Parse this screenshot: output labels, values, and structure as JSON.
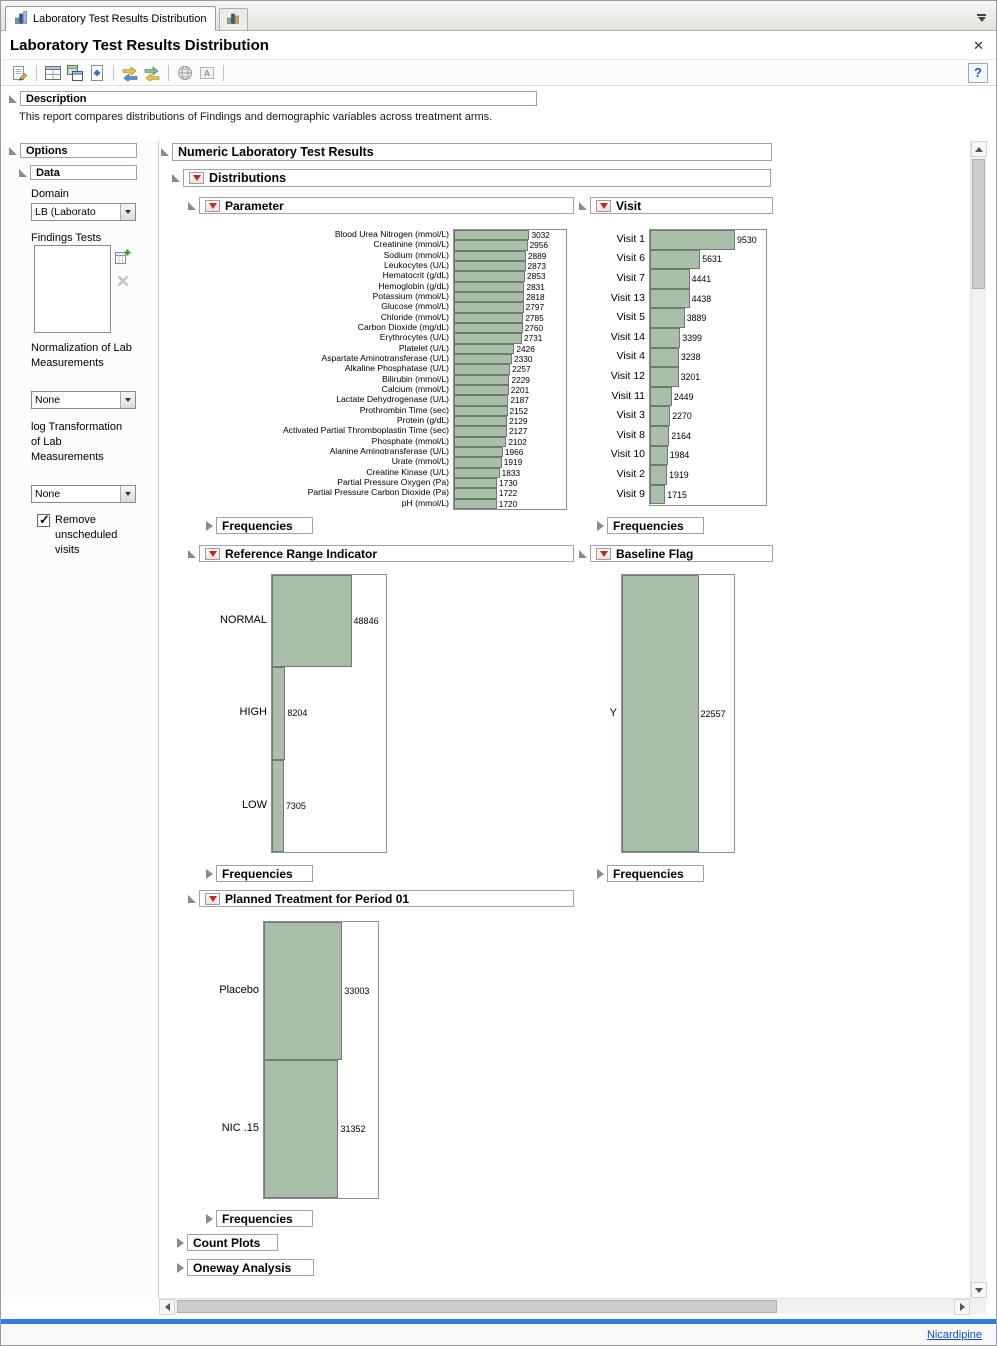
{
  "window": {
    "tab_label": "Laboratory Test Results Distribution",
    "title": "Laboratory Test Results Distribution",
    "close_glyph": "✕"
  },
  "toolbar": {
    "icons": [
      "edit-script-icon",
      "layout-manager-icon",
      "data-table-icon",
      "journal-icon",
      "refresh-data-icon",
      "swap-data-icon",
      "globe-icon",
      "annotate-icon",
      "help-icon"
    ],
    "help_label": "?"
  },
  "description": {
    "header": "Description",
    "text": "This report compares distributions of Findings and demographic variables across treatment arms."
  },
  "options": {
    "header": "Options",
    "data": {
      "header": "Data",
      "domain_label": "Domain",
      "domain_value": "LB (Laborato",
      "findings_tests_label": "Findings Tests",
      "normalization_label": "Normalization of Lab Measurements",
      "normalization_value": "None",
      "log_transform_label": "log Transformation of Lab Measurements",
      "log_transform_value": "None",
      "remove_unscheduled_label": "Remove unscheduled visits",
      "remove_unscheduled_checked": true
    }
  },
  "main": {
    "header": "Numeric Laboratory Test Results",
    "distributions_label": "Distributions",
    "frequencies_label": "Frequencies",
    "count_plots_label": "Count Plots",
    "oneway_label": "Oneway Analysis"
  },
  "statusbar": {
    "link_label": "Nicardipine"
  },
  "colors": {
    "bar_fill": "#a9bfa9",
    "bar_border": "#6c7d6e",
    "accent_strip": "#2e7de2",
    "link": "#0b4fd6",
    "red_triangle": "#c42b1c"
  },
  "chart_data": [
    {
      "id": "parameter",
      "type": "bar",
      "orientation": "horizontal",
      "title": "Parameter",
      "categories": [
        "Blood Urea Nitrogen (mmol/L)",
        "Creatinine (mmol/L)",
        "Sodium (mmol/L)",
        "Leukocytes (U/L)",
        "Hematocrit (g/dL)",
        "Hemoglobin (g/dL)",
        "Potassium (mmol/L)",
        "Glucose (mmol/L)",
        "Chloride (mmol/L)",
        "Carbon Dioxide (mg/dL)",
        "Erythrocytes (U/L)",
        "Platelet (U/L)",
        "Aspartate Aminotransferase (U/L)",
        "Alkaline Phosphatase (U/L)",
        "Bilirubin (mmol/L)",
        "Calcium (mmol/L)",
        "Lactate Dehydrogenase (U/L)",
        "Prothrombin Time (sec)",
        "Protein (g/dL)",
        "Activated Partial Thromboplastin Time (sec)",
        "Phosphate (mmol/L)",
        "Alanine Aminotransferase (U/L)",
        "Urate (mmol/L)",
        "Creatine Kinase (U/L)",
        "Partial Pressure Oxygen (Pa)",
        "Partial Pressure Carbon Dioxide (Pa)",
        "pH (mmol/L)"
      ],
      "values": [
        3032,
        2956,
        2889,
        2873,
        2853,
        2831,
        2818,
        2797,
        2785,
        2760,
        2731,
        2426,
        2330,
        2257,
        2229,
        2201,
        2187,
        2152,
        2129,
        2127,
        2102,
        1966,
        1919,
        1833,
        1730,
        1722,
        1720
      ],
      "xlabel": "",
      "ylabel": "",
      "xlim": [
        0,
        4500
      ],
      "grid": false,
      "value_labels": true
    },
    {
      "id": "visit",
      "type": "bar",
      "orientation": "horizontal",
      "title": "Visit",
      "categories": [
        "Visit 1",
        "Visit 6",
        "Visit 7",
        "Visit 13",
        "Visit 5",
        "Visit 14",
        "Visit 4",
        "Visit 12",
        "Visit 11",
        "Visit 3",
        "Visit 8",
        "Visit 10",
        "Visit 2",
        "Visit 9"
      ],
      "values": [
        9530,
        5631,
        4441,
        4438,
        3889,
        3399,
        3238,
        3201,
        2449,
        2270,
        2164,
        1984,
        1919,
        1715
      ],
      "xlabel": "",
      "ylabel": "",
      "xlim": [
        0,
        13000
      ],
      "grid": false,
      "value_labels": true
    },
    {
      "id": "reference_range",
      "type": "bar",
      "orientation": "horizontal",
      "title": "Reference Range Indicator",
      "categories": [
        "NORMAL",
        "HIGH",
        "LOW"
      ],
      "values": [
        48846,
        8204,
        7305
      ],
      "xlabel": "",
      "ylabel": "",
      "xlim": [
        0,
        70000
      ],
      "grid": false,
      "value_labels": true
    },
    {
      "id": "baseline_flag",
      "type": "bar",
      "orientation": "horizontal",
      "title": "Baseline Flag",
      "categories": [
        "Y"
      ],
      "values": [
        22557
      ],
      "xlabel": "",
      "ylabel": "",
      "xlim": [
        0,
        33000
      ],
      "grid": false,
      "value_labels": true
    },
    {
      "id": "treatment",
      "type": "bar",
      "orientation": "horizontal",
      "title": "Planned Treatment for Period 01",
      "categories": [
        "Placebo",
        "NIC .15"
      ],
      "values": [
        33003,
        31352
      ],
      "xlabel": "",
      "ylabel": "",
      "xlim": [
        0,
        48000
      ],
      "grid": false,
      "value_labels": true
    }
  ]
}
